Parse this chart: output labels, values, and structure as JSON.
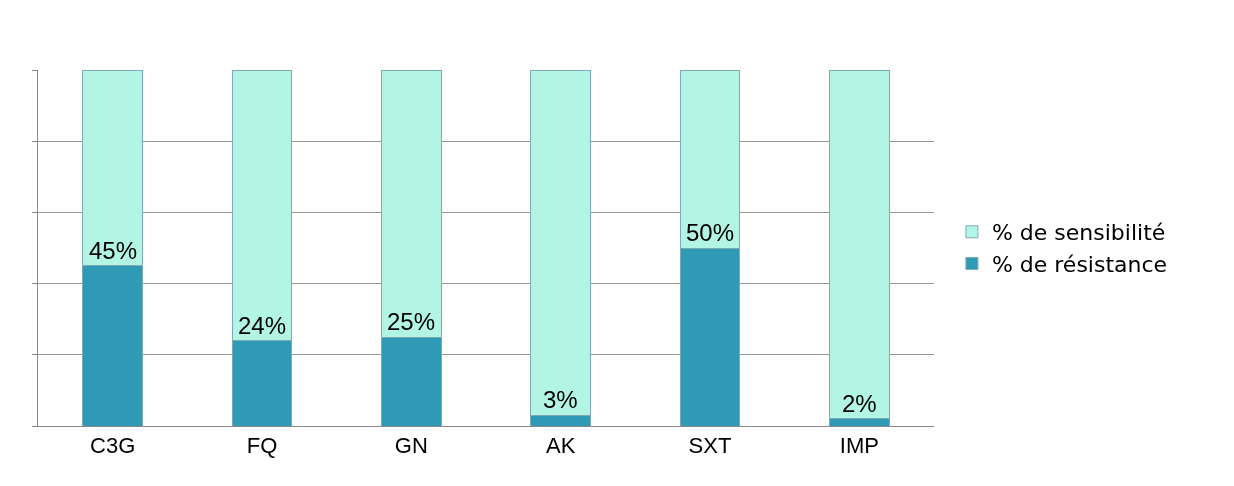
{
  "chart_data": {
    "type": "bar",
    "stacked": true,
    "categories": [
      "C3G",
      "FQ",
      "GN",
      "AK",
      "SXT",
      "IMP"
    ],
    "series": [
      {
        "name": "% de résistance",
        "color": "#2e9ab5",
        "values": [
          45,
          24,
          25,
          3,
          50,
          2
        ],
        "value_labels": [
          "45%",
          "24%",
          "25%",
          "3%",
          "50%",
          "2%"
        ]
      },
      {
        "name": "% de sensibilité",
        "color": "#b3f5e5",
        "values": [
          55,
          76,
          75,
          97,
          50,
          98
        ]
      }
    ],
    "ylim": [
      0,
      100
    ],
    "yticks": [
      {
        "value": 0,
        "label": null
      },
      {
        "value": 20,
        "label": null
      },
      {
        "value": 40,
        "label": null
      },
      {
        "value": 60,
        "label": null
      },
      {
        "value": 80,
        "label": null
      },
      {
        "value": 100,
        "label": null
      }
    ],
    "grid": "y",
    "legend": "right",
    "tick_labels": "x"
  }
}
